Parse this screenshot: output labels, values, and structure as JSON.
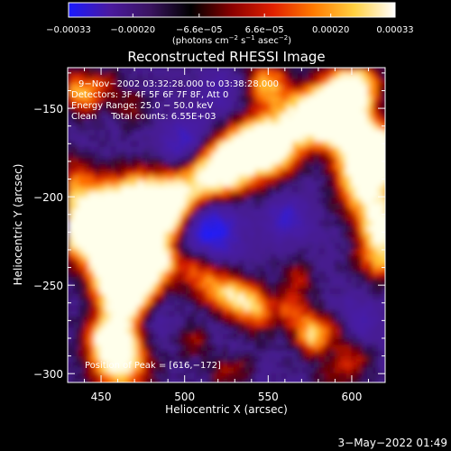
{
  "chart_data": {
    "type": "heatmap",
    "title": "Reconstructed RHESSI Image",
    "xlabel": "Heliocentric X (arcsec)",
    "ylabel": "Heliocentric Y (arcsec)",
    "xlim": [
      430,
      620
    ],
    "ylim": [
      -305,
      -127
    ],
    "x_ticks": [
      450,
      500,
      550,
      600
    ],
    "x_tick_labels": [
      "450",
      "500",
      "550",
      "600"
    ],
    "y_ticks": [
      -150,
      -200,
      -250,
      -300
    ],
    "y_tick_labels": [
      "−150",
      "−200",
      "−250",
      "−300"
    ],
    "colorbar": {
      "range": [
        -0.00033,
        0.00033
      ],
      "ticks": [
        -0.00033,
        -0.0002,
        -6.6e-05,
        6.6e-05,
        0.0002,
        0.00033
      ],
      "tick_labels": [
        "−0.00033",
        "−0.00020",
        "−6.6e−05",
        "6.6e−05",
        "0.00020",
        "0.00033"
      ],
      "unit_parts": [
        "(photons cm",
        "−2",
        " s",
        "−1",
        " asec",
        "−2",
        ")"
      ],
      "colors": [
        "#1a1aff",
        "#4a1aa0",
        "#3a1460",
        "#000000",
        "#8a0000",
        "#e02000",
        "#ff7a00",
        "#ffd040",
        "#ffffff"
      ]
    },
    "info": {
      "time_range": "9−Nov−2002 03:32:28.000 to 03:38:28.000",
      "detectors": "Detectors: 3F 4F 5F 6F 7F 8F, Att 0",
      "energy": "Energy Range: 25.0 − 50.0 keV",
      "clean": "Clean     Total counts: 6.55E+03",
      "peak": "Position of Peak = [616,−172]"
    },
    "peak_position": [
      616,
      -172
    ],
    "grid": false
  },
  "footer": {
    "timestamp": "3−May−2022 01:49"
  }
}
